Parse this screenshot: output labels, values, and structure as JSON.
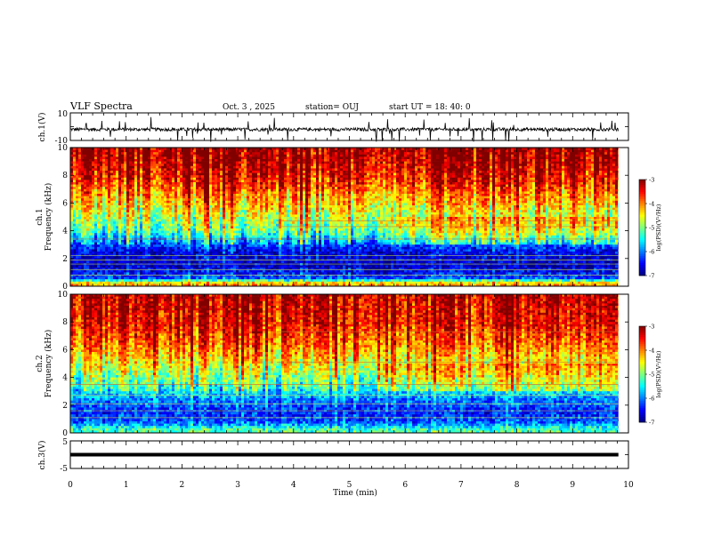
{
  "header": {
    "title": "VLF Spectra",
    "date": "Oct. 3  , 2025",
    "station": "station= OUJ",
    "start": "start  UT =   18: 40: 0"
  },
  "colorbar": {
    "label": "log(PSD)(V²/Hz)",
    "ticks": [
      "-3",
      "-4",
      "-5",
      "-6",
      "-7"
    ],
    "range": [
      -7,
      -3
    ]
  },
  "chart_data": [
    {
      "type": "line",
      "id": "ch1-waveform",
      "ylabel": "ch.1(V)",
      "ylim": [
        -10,
        10
      ],
      "yticks": [
        "10",
        "-10"
      ],
      "baseline": -2,
      "xlim": [
        0,
        10
      ]
    },
    {
      "type": "heatmap",
      "id": "ch1-spectrogram",
      "ylabel": "ch.1\nFrequency (kHz)",
      "ylabel_channel": "ch.1",
      "ylabel_freq": "Frequency (kHz)",
      "ylim": [
        0,
        10
      ],
      "yticks": [
        "0",
        "2",
        "4",
        "6",
        "8",
        "10"
      ],
      "xlim": [
        0,
        10
      ],
      "data_end_min": 9.82,
      "colorscale": "jet",
      "zlim": [
        -7,
        -3
      ],
      "profile": [
        {
          "freq": 0.2,
          "level": -4.2
        },
        {
          "freq": 0.6,
          "level": -6.3
        },
        {
          "freq": 1.5,
          "level": -6.8
        },
        {
          "freq": 2.5,
          "level": -6.6
        },
        {
          "freq": 3.2,
          "level": -6.0
        },
        {
          "freq": 4.0,
          "level": -5.2
        },
        {
          "freq": 5.0,
          "level": -4.8
        },
        {
          "freq": 6.2,
          "level": -4.3
        },
        {
          "freq": 7.5,
          "level": -3.7
        },
        {
          "freq": 9.0,
          "level": -3.3
        },
        {
          "freq": 10.0,
          "level": -3.2
        }
      ],
      "lines_khz": [
        4.7,
        4.3,
        3.4,
        2.2,
        1.9,
        1.6,
        1.2,
        0.8
      ]
    },
    {
      "type": "heatmap",
      "id": "ch2-spectrogram",
      "ylabel": "ch.2\nFrequency (kHz)",
      "ylabel_channel": "ch.2",
      "ylabel_freq": "Frequency (kHz)",
      "ylim": [
        0,
        10
      ],
      "yticks": [
        "0",
        "2",
        "4",
        "6",
        "8",
        "10"
      ],
      "xlim": [
        0,
        10
      ],
      "data_end_min": 9.82,
      "colorscale": "jet",
      "zlim": [
        -7,
        -3
      ],
      "profile": [
        {
          "freq": 0.2,
          "level": -5.2
        },
        {
          "freq": 0.8,
          "level": -6.2
        },
        {
          "freq": 1.5,
          "level": -6.4
        },
        {
          "freq": 2.4,
          "level": -6.0
        },
        {
          "freq": 3.2,
          "level": -5.4
        },
        {
          "freq": 4.2,
          "level": -4.9
        },
        {
          "freq": 5.3,
          "level": -4.4
        },
        {
          "freq": 6.5,
          "level": -3.9
        },
        {
          "freq": 8.0,
          "level": -3.5
        },
        {
          "freq": 10.0,
          "level": -3.3
        }
      ],
      "lines_khz": [
        7.3,
        5.1,
        3.5,
        2.7,
        2.1,
        1.6,
        1.1
      ]
    },
    {
      "type": "line",
      "id": "ch3-waveform",
      "ylabel": "ch.3(V)",
      "ylim": [
        -5,
        5
      ],
      "yticks": [
        "5",
        "-5"
      ],
      "baseline": 0,
      "xlim": [
        0,
        10
      ],
      "xlabel": "Time (min)",
      "xticks": [
        "0",
        "1",
        "2",
        "3",
        "4",
        "5",
        "6",
        "7",
        "8",
        "9",
        "10"
      ]
    }
  ]
}
